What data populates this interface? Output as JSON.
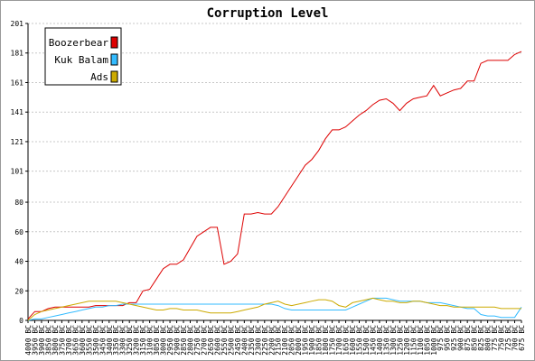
{
  "chart_data": {
    "type": "line",
    "title": "Corruption Level",
    "xlabel": "",
    "ylabel": "",
    "ylim": [
      0,
      201
    ],
    "yticks": [
      0,
      20,
      40,
      60,
      80,
      101,
      121,
      141,
      161,
      181,
      201
    ],
    "grid": true,
    "legend_position": "top-left",
    "x": [
      "4000 BC",
      "3950 BC",
      "3900 BC",
      "3850 BC",
      "3800 BC",
      "3750 BC",
      "3700 BC",
      "3650 BC",
      "3600 BC",
      "3550 BC",
      "3500 BC",
      "3450 BC",
      "3400 BC",
      "3350 BC",
      "3300 BC",
      "3250 BC",
      "3200 BC",
      "3150 BC",
      "3100 BC",
      "3050 BC",
      "3000 BC",
      "2950 BC",
      "2900 BC",
      "2850 BC",
      "2800 BC",
      "2750 BC",
      "2700 BC",
      "2650 BC",
      "2600 BC",
      "2550 BC",
      "2500 BC",
      "2450 BC",
      "2400 BC",
      "2350 BC",
      "2300 BC",
      "2250 BC",
      "2200 BC",
      "2150 BC",
      "2100 BC",
      "2050 BC",
      "2000 BC",
      "1950 BC",
      "1900 BC",
      "1850 BC",
      "1800 BC",
      "1750 BC",
      "1700 BC",
      "1650 BC",
      "1600 BC",
      "1550 BC",
      "1500 BC",
      "1450 BC",
      "1400 BC",
      "1350 BC",
      "1300 BC",
      "1250 BC",
      "1200 BC",
      "1150 BC",
      "1100 BC",
      "1050 BC",
      "1000 BC",
      "975 BC",
      "950 BC",
      "925 BC",
      "900 BC",
      "875 BC",
      "850 BC",
      "825 BC",
      "800 BC",
      "775 BC",
      "750 BC",
      "725 BC",
      "700 BC",
      "675 BC"
    ],
    "series": [
      {
        "name": "Boozerbear",
        "color": "#dd0000",
        "values": [
          1,
          6,
          6,
          8,
          9,
          9,
          9,
          9,
          9,
          9,
          10,
          10,
          10,
          10,
          10,
          12,
          12,
          20,
          21,
          28,
          35,
          38,
          38,
          41,
          49,
          57,
          60,
          63,
          63,
          38,
          40,
          45,
          72,
          72,
          73,
          72,
          72,
          77,
          84,
          91,
          98,
          105,
          109,
          115,
          123,
          129,
          129,
          131,
          135,
          139,
          142,
          146,
          149,
          150,
          147,
          142,
          147,
          150,
          151,
          152,
          159,
          152,
          154,
          156,
          157,
          162,
          162,
          174,
          176,
          176,
          176,
          176,
          180,
          182
        ]
      },
      {
        "name": "Kuk Balam",
        "color": "#33bbff",
        "values": [
          0,
          1,
          1,
          2,
          3,
          4,
          5,
          6,
          7,
          8,
          9,
          9,
          10,
          10,
          11,
          11,
          11,
          11,
          11,
          11,
          11,
          11,
          11,
          11,
          11,
          11,
          11,
          11,
          11,
          11,
          11,
          11,
          11,
          11,
          11,
          11,
          11,
          10,
          8,
          7,
          7,
          7,
          7,
          7,
          7,
          7,
          7,
          7,
          9,
          11,
          13,
          15,
          15,
          15,
          14,
          13,
          13,
          13,
          13,
          12,
          12,
          12,
          11,
          10,
          9,
          8,
          8,
          4,
          3,
          3,
          2,
          2,
          2,
          9
        ]
      },
      {
        "name": "Ads",
        "color": "#ccaa00",
        "values": [
          0,
          4,
          6,
          7,
          8,
          9,
          10,
          11,
          12,
          13,
          13,
          13,
          13,
          13,
          12,
          11,
          10,
          9,
          8,
          7,
          7,
          8,
          8,
          7,
          7,
          7,
          6,
          5,
          5,
          5,
          5,
          6,
          7,
          8,
          9,
          11,
          12,
          13,
          11,
          10,
          11,
          12,
          13,
          14,
          14,
          13,
          10,
          9,
          12,
          13,
          14,
          15,
          14,
          13,
          13,
          12,
          12,
          13,
          13,
          12,
          11,
          10,
          10,
          9,
          9,
          9,
          9,
          9,
          9,
          9,
          8,
          8,
          8,
          8
        ]
      }
    ]
  }
}
